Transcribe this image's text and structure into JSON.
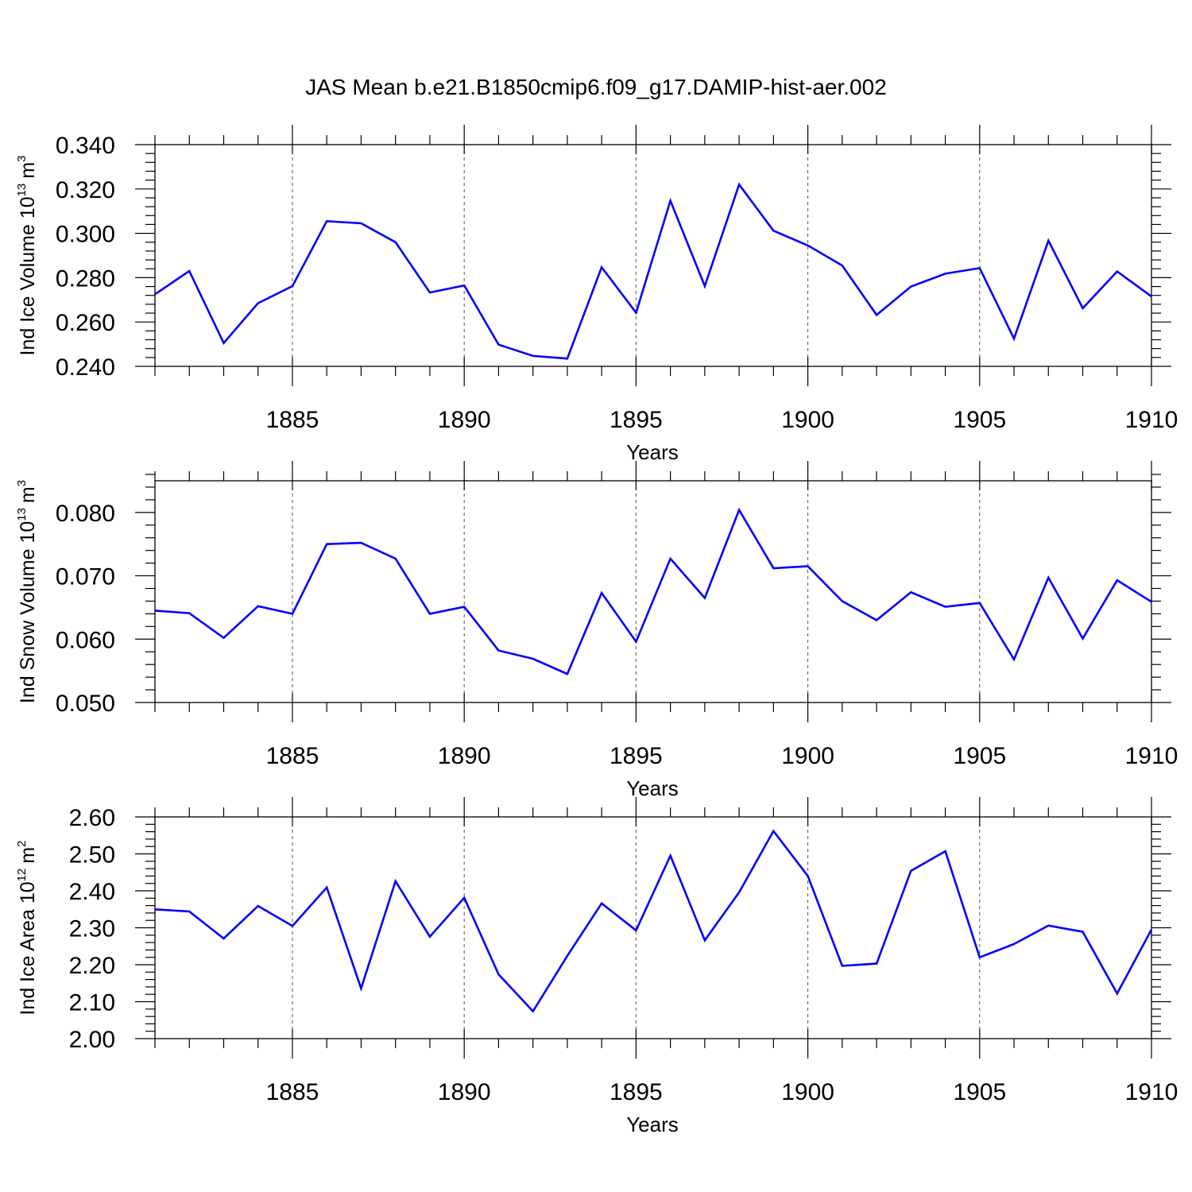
{
  "chart_data": [
    {
      "type": "line",
      "title": "JAS Mean b.e21.B1850cmip6.f09_g17.DAMIP-hist-aer.002",
      "xlabel": "Years",
      "ylabel": {
        "text": "Ind Ice Volume 10",
        "exponent": "13",
        "unit": "m",
        "unit_exponent": "3"
      },
      "x": [
        1881,
        1882,
        1883,
        1884,
        1885,
        1886,
        1887,
        1888,
        1889,
        1890,
        1891,
        1892,
        1893,
        1894,
        1895,
        1896,
        1897,
        1898,
        1899,
        1900,
        1901,
        1902,
        1903,
        1904,
        1905,
        1906,
        1907,
        1908,
        1909,
        1910
      ],
      "series": [
        {
          "name": "Ind Ice Volume",
          "color": "#0000ff",
          "values": [
            0.2725,
            0.283,
            0.2505,
            0.2685,
            0.2762,
            0.3055,
            0.3045,
            0.296,
            0.2733,
            0.2765,
            0.2498,
            0.2447,
            0.2435,
            0.2847,
            0.2642,
            0.3147,
            0.2762,
            0.322,
            0.3012,
            0.2945,
            0.2855,
            0.2632,
            0.276,
            0.2818,
            0.2843,
            0.2525,
            0.2967,
            0.2662,
            0.2828,
            0.2715
          ]
        }
      ],
      "xlim": [
        1881,
        1910
      ],
      "ylim": [
        0.24,
        0.34
      ],
      "yticks": [
        0.24,
        0.26,
        0.28,
        0.3,
        0.32,
        0.34
      ],
      "ytick_labels": [
        "0.240",
        "0.260",
        "0.280",
        "0.300",
        "0.320",
        "0.340"
      ],
      "xticks": [
        1885,
        1890,
        1895,
        1900,
        1905,
        1910
      ],
      "xtick_labels": [
        "1885",
        "1890",
        "1895",
        "1900",
        "1905",
        "1910"
      ],
      "grid": "vertical dashed at major x ticks"
    },
    {
      "type": "line",
      "xlabel": "Years",
      "ylabel": {
        "text": "Ind Snow Volume 10",
        "exponent": "13",
        "unit": "m",
        "unit_exponent": "3"
      },
      "x": [
        1881,
        1882,
        1883,
        1884,
        1885,
        1886,
        1887,
        1888,
        1889,
        1890,
        1891,
        1892,
        1893,
        1894,
        1895,
        1896,
        1897,
        1898,
        1899,
        1900,
        1901,
        1902,
        1903,
        1904,
        1905,
        1906,
        1907,
        1908,
        1909,
        1910
      ],
      "series": [
        {
          "name": "Ind Snow Volume",
          "color": "#0000ff",
          "values": [
            0.0645,
            0.0641,
            0.0602,
            0.0652,
            0.064,
            0.075,
            0.0752,
            0.0727,
            0.064,
            0.0651,
            0.0582,
            0.0569,
            0.0545,
            0.0673,
            0.0596,
            0.0727,
            0.0665,
            0.0804,
            0.0712,
            0.0715,
            0.066,
            0.063,
            0.0674,
            0.0651,
            0.0657,
            0.0568,
            0.0697,
            0.0601,
            0.0693,
            0.0659
          ]
        }
      ],
      "xlim": [
        1881,
        1910
      ],
      "ylim": [
        0.05,
        0.085
      ],
      "yticks": [
        0.05,
        0.06,
        0.07,
        0.08
      ],
      "ytick_labels": [
        "0.050",
        "0.060",
        "0.070",
        "0.080"
      ],
      "xticks": [
        1885,
        1890,
        1895,
        1900,
        1905,
        1910
      ],
      "xtick_labels": [
        "1885",
        "1890",
        "1895",
        "1900",
        "1905",
        "1910"
      ],
      "grid": "vertical dashed at major x ticks"
    },
    {
      "type": "line",
      "xlabel": "Years",
      "ylabel": {
        "text": "Ind Ice Area 10",
        "exponent": "12",
        "unit": "m",
        "unit_exponent": "2"
      },
      "x": [
        1881,
        1882,
        1883,
        1884,
        1885,
        1886,
        1887,
        1888,
        1889,
        1890,
        1891,
        1892,
        1893,
        1894,
        1895,
        1896,
        1897,
        1898,
        1899,
        1900,
        1901,
        1902,
        1903,
        1904,
        1905,
        1906,
        1907,
        1908,
        1909,
        1910
      ],
      "series": [
        {
          "name": "Ind Ice Area",
          "color": "#0000ff",
          "values": [
            2.35,
            2.344,
            2.271,
            2.359,
            2.305,
            2.409,
            2.136,
            2.426,
            2.276,
            2.381,
            2.174,
            2.074,
            2.224,
            2.366,
            2.293,
            2.495,
            2.266,
            2.396,
            2.562,
            2.44,
            2.197,
            2.203,
            2.454,
            2.507,
            2.22,
            2.256,
            2.306,
            2.289,
            2.122,
            2.295
          ]
        }
      ],
      "xlim": [
        1881,
        1910
      ],
      "ylim": [
        2.0,
        2.6
      ],
      "yticks": [
        2.0,
        2.1,
        2.2,
        2.3,
        2.4,
        2.5,
        2.6
      ],
      "ytick_labels": [
        "2.00",
        "2.10",
        "2.20",
        "2.30",
        "2.40",
        "2.50",
        "2.60"
      ],
      "xticks": [
        1885,
        1890,
        1895,
        1900,
        1905,
        1910
      ],
      "xtick_labels": [
        "1885",
        "1890",
        "1895",
        "1900",
        "1905",
        "1910"
      ],
      "grid": "vertical dashed at major x ticks"
    }
  ]
}
